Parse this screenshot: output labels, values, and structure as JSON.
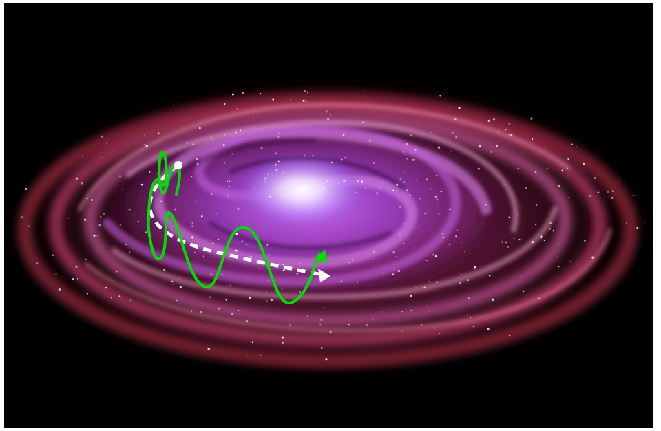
{
  "image": {
    "background_color": "#000000",
    "frame_color": "#ffffff",
    "galaxy_core_color": "#e8d8ff",
    "inner_arm_color": "#8a4fd8",
    "middle_arm_color": "#c04fd0",
    "outer_arm_color": "#d03a5a",
    "star_color": "#ffffff"
  },
  "annotations": {
    "wave_path": {
      "icon": "oscillating-orbit-line",
      "color": "#00dd00"
    },
    "mean_orbit": {
      "icon": "dashed-arrow",
      "color": "#ffffff"
    },
    "start_point": {
      "icon": "white-dot",
      "color": "#ffffff"
    }
  }
}
